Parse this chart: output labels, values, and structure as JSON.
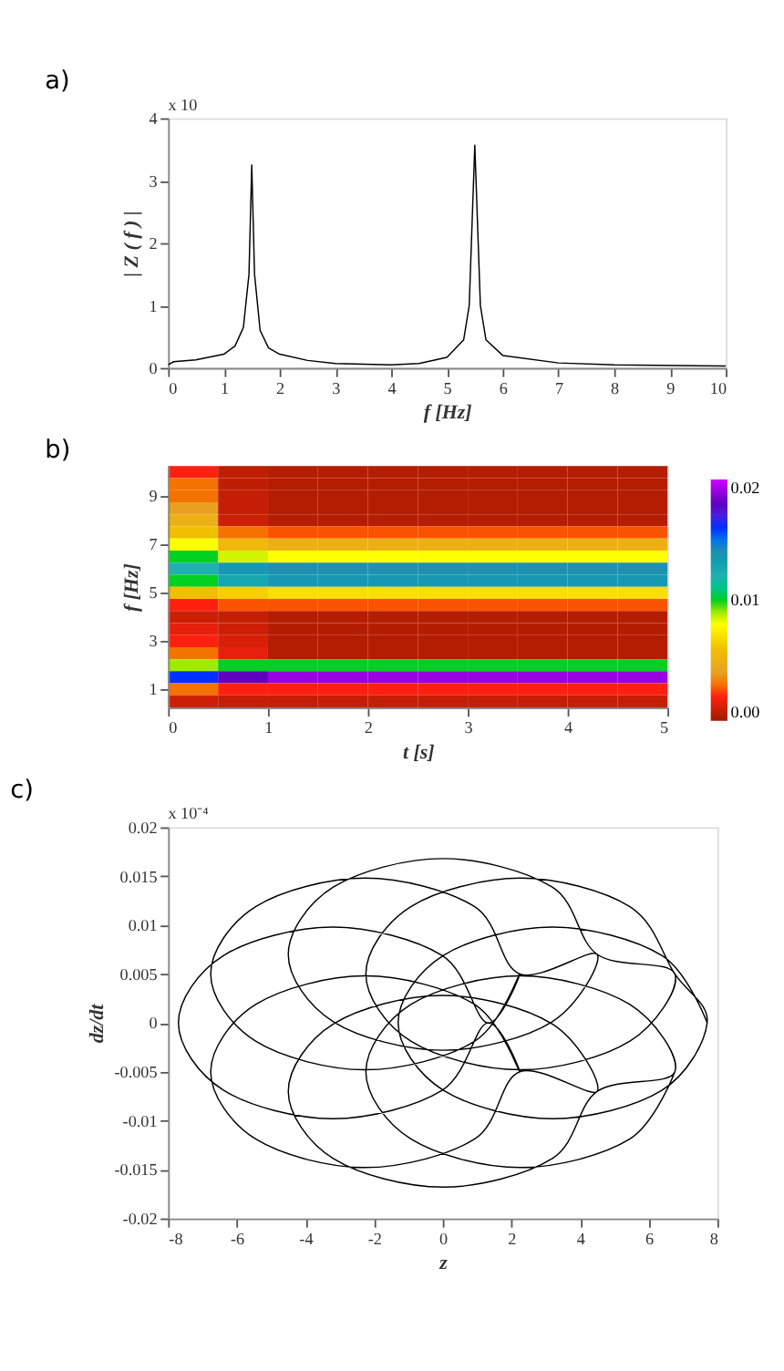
{
  "chart_data": [
    {
      "type": "line",
      "title": "a)",
      "xlabel": "f  [Hz]",
      "ylabel": "| Z ( f ) |",
      "annotations": [
        "x 10"
      ],
      "x": [
        0,
        0.1,
        0.5,
        1.0,
        1.2,
        1.35,
        1.45,
        1.5,
        1.55,
        1.65,
        1.8,
        2.0,
        2.5,
        3.0,
        4.0,
        4.5,
        5.0,
        5.3,
        5.4,
        5.5,
        5.6,
        5.7,
        6.0,
        7.0,
        8.0,
        10.0
      ],
      "values": [
        0.05,
        0.1,
        0.13,
        0.22,
        0.35,
        0.65,
        1.5,
        3.25,
        1.5,
        0.6,
        0.32,
        0.22,
        0.12,
        0.07,
        0.05,
        0.07,
        0.17,
        0.45,
        1.0,
        3.57,
        1.0,
        0.45,
        0.2,
        0.08,
        0.05,
        0.03
      ],
      "color": "#000000",
      "xlim": [
        0,
        10
      ],
      "xticks": [
        0,
        1,
        2,
        3,
        4,
        5,
        6,
        7,
        8,
        9,
        10
      ],
      "ylim": [
        0,
        4
      ],
      "yticks": [
        0,
        1,
        2,
        3,
        4
      ],
      "grid": false
    },
    {
      "type": "heatmap",
      "title": "b)",
      "xlabel": "t  [s]",
      "ylabel": "f [Hz]",
      "x": [
        0.25,
        0.75,
        1.25,
        1.75,
        2.25,
        2.75,
        3.25,
        3.75,
        4.25,
        4.75
      ],
      "y_categories": [
        null,
        null,
        "9",
        null,
        null,
        null,
        "7",
        null,
        null,
        null,
        "5",
        null,
        null,
        null,
        "3",
        null,
        null,
        null,
        "1",
        null
      ],
      "cells": [
        [
          0.002,
          0.0007,
          0.0005,
          0.0005,
          0.0005,
          0.0005,
          0.0005,
          0.0005,
          0.0005,
          0.0005
        ],
        [
          0.003,
          0.0007,
          0.0005,
          0.0005,
          0.0005,
          0.0005,
          0.0005,
          0.0005,
          0.0005,
          0.0005
        ],
        [
          0.003,
          0.0008,
          0.0005,
          0.0005,
          0.0005,
          0.0005,
          0.0005,
          0.0005,
          0.0005,
          0.0005
        ],
        [
          0.004,
          0.0008,
          0.0005,
          0.0005,
          0.0005,
          0.0005,
          0.0005,
          0.0005,
          0.0005,
          0.0005
        ],
        [
          0.005,
          0.001,
          0.0005,
          0.0005,
          0.0005,
          0.0005,
          0.0005,
          0.0005,
          0.0005,
          0.0005
        ],
        [
          0.006,
          0.003,
          0.0025,
          0.0025,
          0.0025,
          0.0025,
          0.0025,
          0.0025,
          0.0025,
          0.0025
        ],
        [
          0.008,
          0.0055,
          0.005,
          0.005,
          0.005,
          0.005,
          0.005,
          0.005,
          0.005,
          0.005
        ],
        [
          0.01,
          0.0085,
          0.008,
          0.008,
          0.008,
          0.008,
          0.008,
          0.008,
          0.008,
          0.008
        ],
        [
          0.012,
          0.0135,
          0.014,
          0.014,
          0.014,
          0.014,
          0.014,
          0.014,
          0.014,
          0.014
        ],
        [
          0.01,
          0.0125,
          0.0135,
          0.0135,
          0.0135,
          0.0135,
          0.0135,
          0.0135,
          0.0135,
          0.0135
        ],
        [
          0.006,
          0.0065,
          0.007,
          0.007,
          0.007,
          0.007,
          0.007,
          0.007,
          0.007,
          0.007
        ],
        [
          0.002,
          0.0025,
          0.0025,
          0.0025,
          0.0025,
          0.0025,
          0.0025,
          0.0025,
          0.0025,
          0.0025
        ],
        [
          0.001,
          0.0008,
          0.0005,
          0.0005,
          0.0005,
          0.0005,
          0.0005,
          0.0005,
          0.0005,
          0.0005
        ],
        [
          0.0015,
          0.001,
          0.0005,
          0.0005,
          0.0005,
          0.0005,
          0.0005,
          0.0005,
          0.0005,
          0.0005
        ],
        [
          0.002,
          0.0012,
          0.0005,
          0.0005,
          0.0005,
          0.0005,
          0.0005,
          0.0005,
          0.0005,
          0.0005
        ],
        [
          0.003,
          0.0015,
          0.0005,
          0.0005,
          0.0005,
          0.0005,
          0.0005,
          0.0005,
          0.0005,
          0.0005
        ],
        [
          0.009,
          0.01,
          0.01,
          0.01,
          0.01,
          0.01,
          0.01,
          0.01,
          0.01,
          0.01
        ],
        [
          0.016,
          0.018,
          0.019,
          0.019,
          0.019,
          0.019,
          0.019,
          0.019,
          0.019,
          0.019
        ],
        [
          0.003,
          0.002,
          0.002,
          0.002,
          0.002,
          0.002,
          0.002,
          0.002,
          0.002,
          0.002
        ],
        [
          0.001,
          0.0008,
          0.0008,
          0.0008,
          0.0008,
          0.0008,
          0.0008,
          0.0008,
          0.0008,
          0.0008
        ]
      ],
      "xlim": [
        0,
        5
      ],
      "xticks": [
        0,
        1,
        2,
        3,
        4,
        5
      ],
      "clim": [
        0,
        0.02
      ],
      "cticks": [
        {
          "value": 0,
          "label": "0.00"
        },
        {
          "value": 0.01,
          "label": "0.01"
        },
        {
          "value": 0.02,
          "label": "0.02"
        }
      ]
    },
    {
      "type": "line",
      "title": "c)",
      "xlabel": "z",
      "ylabel": "dz/dt",
      "annotations": [
        "x 10⁻⁴"
      ],
      "x": [
        7.7,
        6.38,
        3.2,
        0.02,
        -1.3,
        0.02,
        3.2,
        6.38,
        7.7,
        6.76,
        5.44,
        2.26,
        -0.92,
        -2.24,
        -0.92,
        2.26,
        5.44,
        6.76,
        4.5,
        3.18,
        0,
        -3.18,
        -4.5,
        -3.18,
        0,
        3.18,
        4.5,
        2.24,
        0.92,
        -2.26,
        -5.44,
        -6.76,
        -5.44,
        -2.26,
        0.92,
        2.24,
        1.3,
        -0.02,
        -3.2,
        -6.38,
        -7.7,
        -6.38,
        -3.2,
        -0.02,
        1.3,
        2.24,
        0.92,
        -2.26,
        -5.44,
        -6.76,
        -5.44,
        -2.26,
        0.92,
        2.24,
        4.5,
        3.18,
        0,
        -3.18,
        -4.5,
        -3.18,
        0,
        3.18,
        4.5,
        6.76,
        5.44,
        2.26,
        -0.92,
        -2.24,
        -0.92,
        2.26,
        5.44,
        6.76
      ],
      "values": [
        0,
        0.0069,
        0.0098,
        0.0069,
        0,
        -0.0069,
        -0.0098,
        -0.0069,
        0,
        0.005,
        0.0119,
        0.0148,
        0.0119,
        0.005,
        -0.0019,
        -0.0048,
        -0.0019,
        0.005,
        0.007,
        0.0139,
        0.0168,
        0.0139,
        0.007,
        0.0001,
        -0.0028,
        0.0001,
        0.007,
        0.005,
        0.0119,
        0.0148,
        0.0119,
        0.005,
        -0.0019,
        -0.0048,
        -0.0019,
        0.005,
        0,
        0.0069,
        0.0098,
        0.0069,
        0,
        -0.0069,
        -0.0098,
        -0.0069,
        0,
        -0.005,
        0.0019,
        0.0048,
        0.0019,
        -0.005,
        -0.0119,
        -0.0148,
        -0.0119,
        -0.005,
        -0.007,
        -0.0001,
        0.0028,
        -0.0001,
        -0.007,
        -0.0139,
        -0.0168,
        -0.0139,
        -0.007,
        -0.005,
        0.0019,
        0.0048,
        0.0019,
        -0.005,
        -0.0119,
        -0.0148,
        -0.0119,
        -0.005
      ],
      "color": "#000000",
      "xlim": [
        -8,
        8
      ],
      "xticks": [
        -8,
        -6,
        -4,
        -2,
        0,
        2,
        4,
        6,
        8
      ],
      "ylim": [
        -0.02,
        0.02
      ],
      "yticks": [
        -0.02,
        -0.015,
        -0.01,
        -0.005,
        0,
        0.005,
        0.01,
        0.015,
        0.02
      ],
      "grid": false
    }
  ]
}
